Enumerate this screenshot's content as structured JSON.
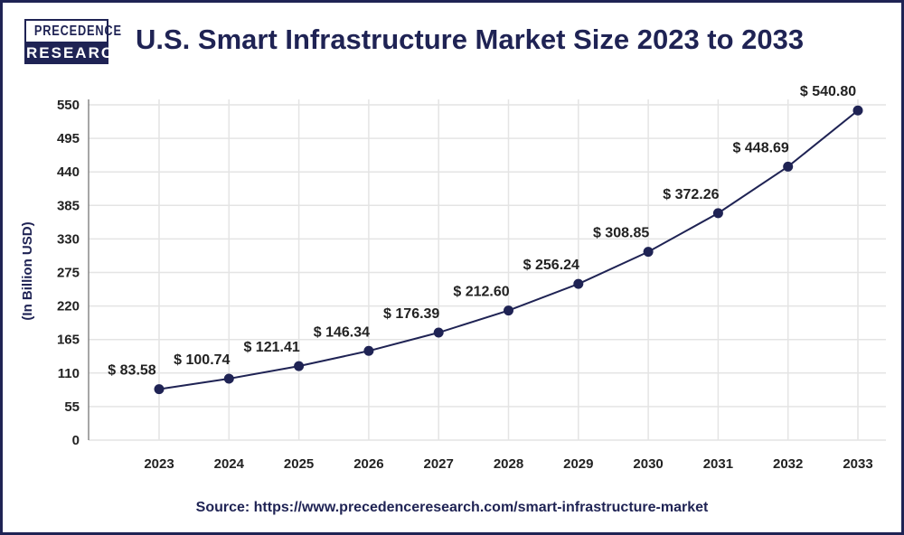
{
  "logo": {
    "line1": "PRECEDENCE",
    "line2": "RESEARCH"
  },
  "source": "Source: https://www.precedenceresearch.com/smart-infrastructure-market",
  "colors": {
    "brand": "#1f2354",
    "line": "#1f2354",
    "grid": "#e4e4e4"
  },
  "chart_data": {
    "type": "line",
    "title": "U.S. Smart Infrastructure Market Size 2023 to 2033",
    "xlabel": "",
    "ylabel": "(In Billion USD)",
    "ylim": [
      0,
      550
    ],
    "yticks": [
      0,
      55,
      110,
      165,
      220,
      275,
      330,
      385,
      440,
      495,
      550
    ],
    "grid": true,
    "categories": [
      "2023",
      "2024",
      "2025",
      "2026",
      "2027",
      "2028",
      "2029",
      "2030",
      "2031",
      "2032",
      "2033"
    ],
    "values": [
      83.58,
      100.74,
      121.41,
      146.34,
      176.39,
      212.6,
      256.24,
      308.85,
      372.26,
      448.69,
      540.8
    ],
    "data_labels": [
      "$ 83.58",
      "$ 100.74",
      "$ 121.41",
      "$ 146.34",
      "$ 176.39",
      "$ 212.60",
      "$ 256.24",
      "$ 308.85",
      "$ 372.26",
      "$ 448.69",
      "$ 540.80"
    ]
  }
}
